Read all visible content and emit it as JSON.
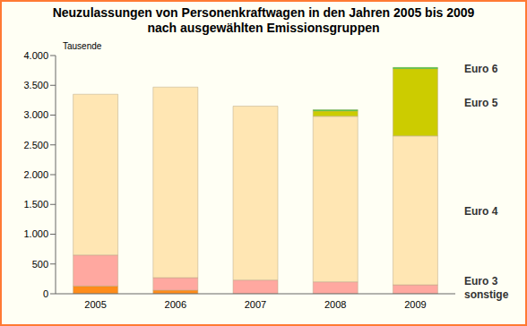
{
  "chart_data": {
    "type": "bar",
    "title": "Neuzulassungen von Personenkraftwagen in den Jahren 2005 bis 2009\nnach ausgewählten Emissionsgruppen",
    "y_label": "Tausende",
    "categories": [
      "2005",
      "2006",
      "2007",
      "2008",
      "2009"
    ],
    "stacked": true,
    "grid": false,
    "series": [
      {
        "name": "sonstige",
        "color": "#ff8c1a",
        "values": [
          130,
          60,
          0,
          0,
          0
        ]
      },
      {
        "name": "Euro 3",
        "color": "#ffa8a0",
        "values": [
          520,
          210,
          230,
          200,
          150
        ]
      },
      {
        "name": "Euro 4",
        "color": "#ffe6b3",
        "values": [
          2700,
          3200,
          2920,
          2780,
          2500
        ]
      },
      {
        "name": "Euro 5",
        "color": "#cccc00",
        "values": [
          0,
          0,
          0,
          90,
          1130
        ]
      },
      {
        "name": "Euro 6",
        "color": "#00cc00",
        "values": [
          0,
          0,
          0,
          20,
          20
        ]
      }
    ],
    "ylim": [
      0,
      4000
    ],
    "yticks": [
      0,
      {
        "value": 500,
        "label": "500"
      },
      {
        "value": 1000,
        "label": "1.000"
      },
      {
        "value": 1500,
        "label": "1.500"
      },
      {
        "value": 2000,
        "label": "2.000"
      },
      {
        "value": 2500,
        "label": "2.500"
      },
      {
        "value": 3000,
        "label": "3.000"
      },
      {
        "value": 3500,
        "label": "3.500"
      },
      {
        "value": 4000,
        "label": "4.000"
      }
    ]
  }
}
